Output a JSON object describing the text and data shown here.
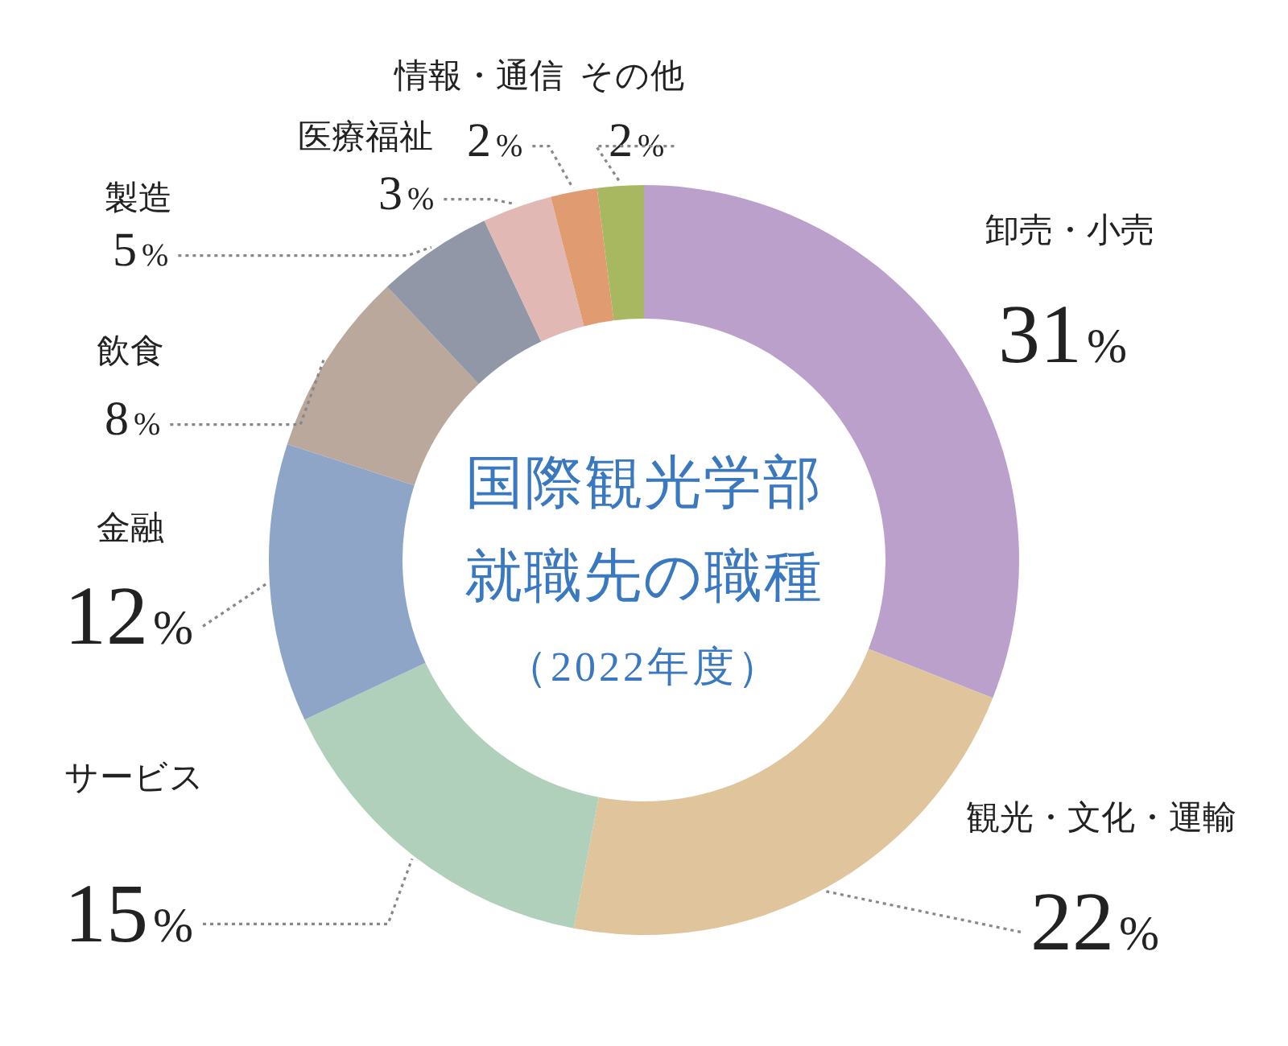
{
  "chart_data": {
    "type": "donut",
    "title": "国際観光学部就職先の職種",
    "subtitle": "（2022年度）",
    "categories": [
      "卸売・小売",
      "観光・文化・運輸",
      "サービス",
      "金融",
      "飲食",
      "製造",
      "医療福祉",
      "情報・通信",
      "その他"
    ],
    "values": [
      31,
      22,
      15,
      12,
      8,
      5,
      3,
      2,
      2
    ],
    "colors": [
      "#bca0cc",
      "#dfc49c",
      "#b0d0bc",
      "#8ea5c8",
      "#baa89c",
      "#9297a8",
      "#e2b8b4",
      "#e09c70",
      "#a8b860"
    ],
    "value_labels": [
      "31%",
      "22%",
      "15%",
      "12%",
      "8%",
      "5%",
      "3%",
      "2%",
      "2%"
    ]
  }
}
